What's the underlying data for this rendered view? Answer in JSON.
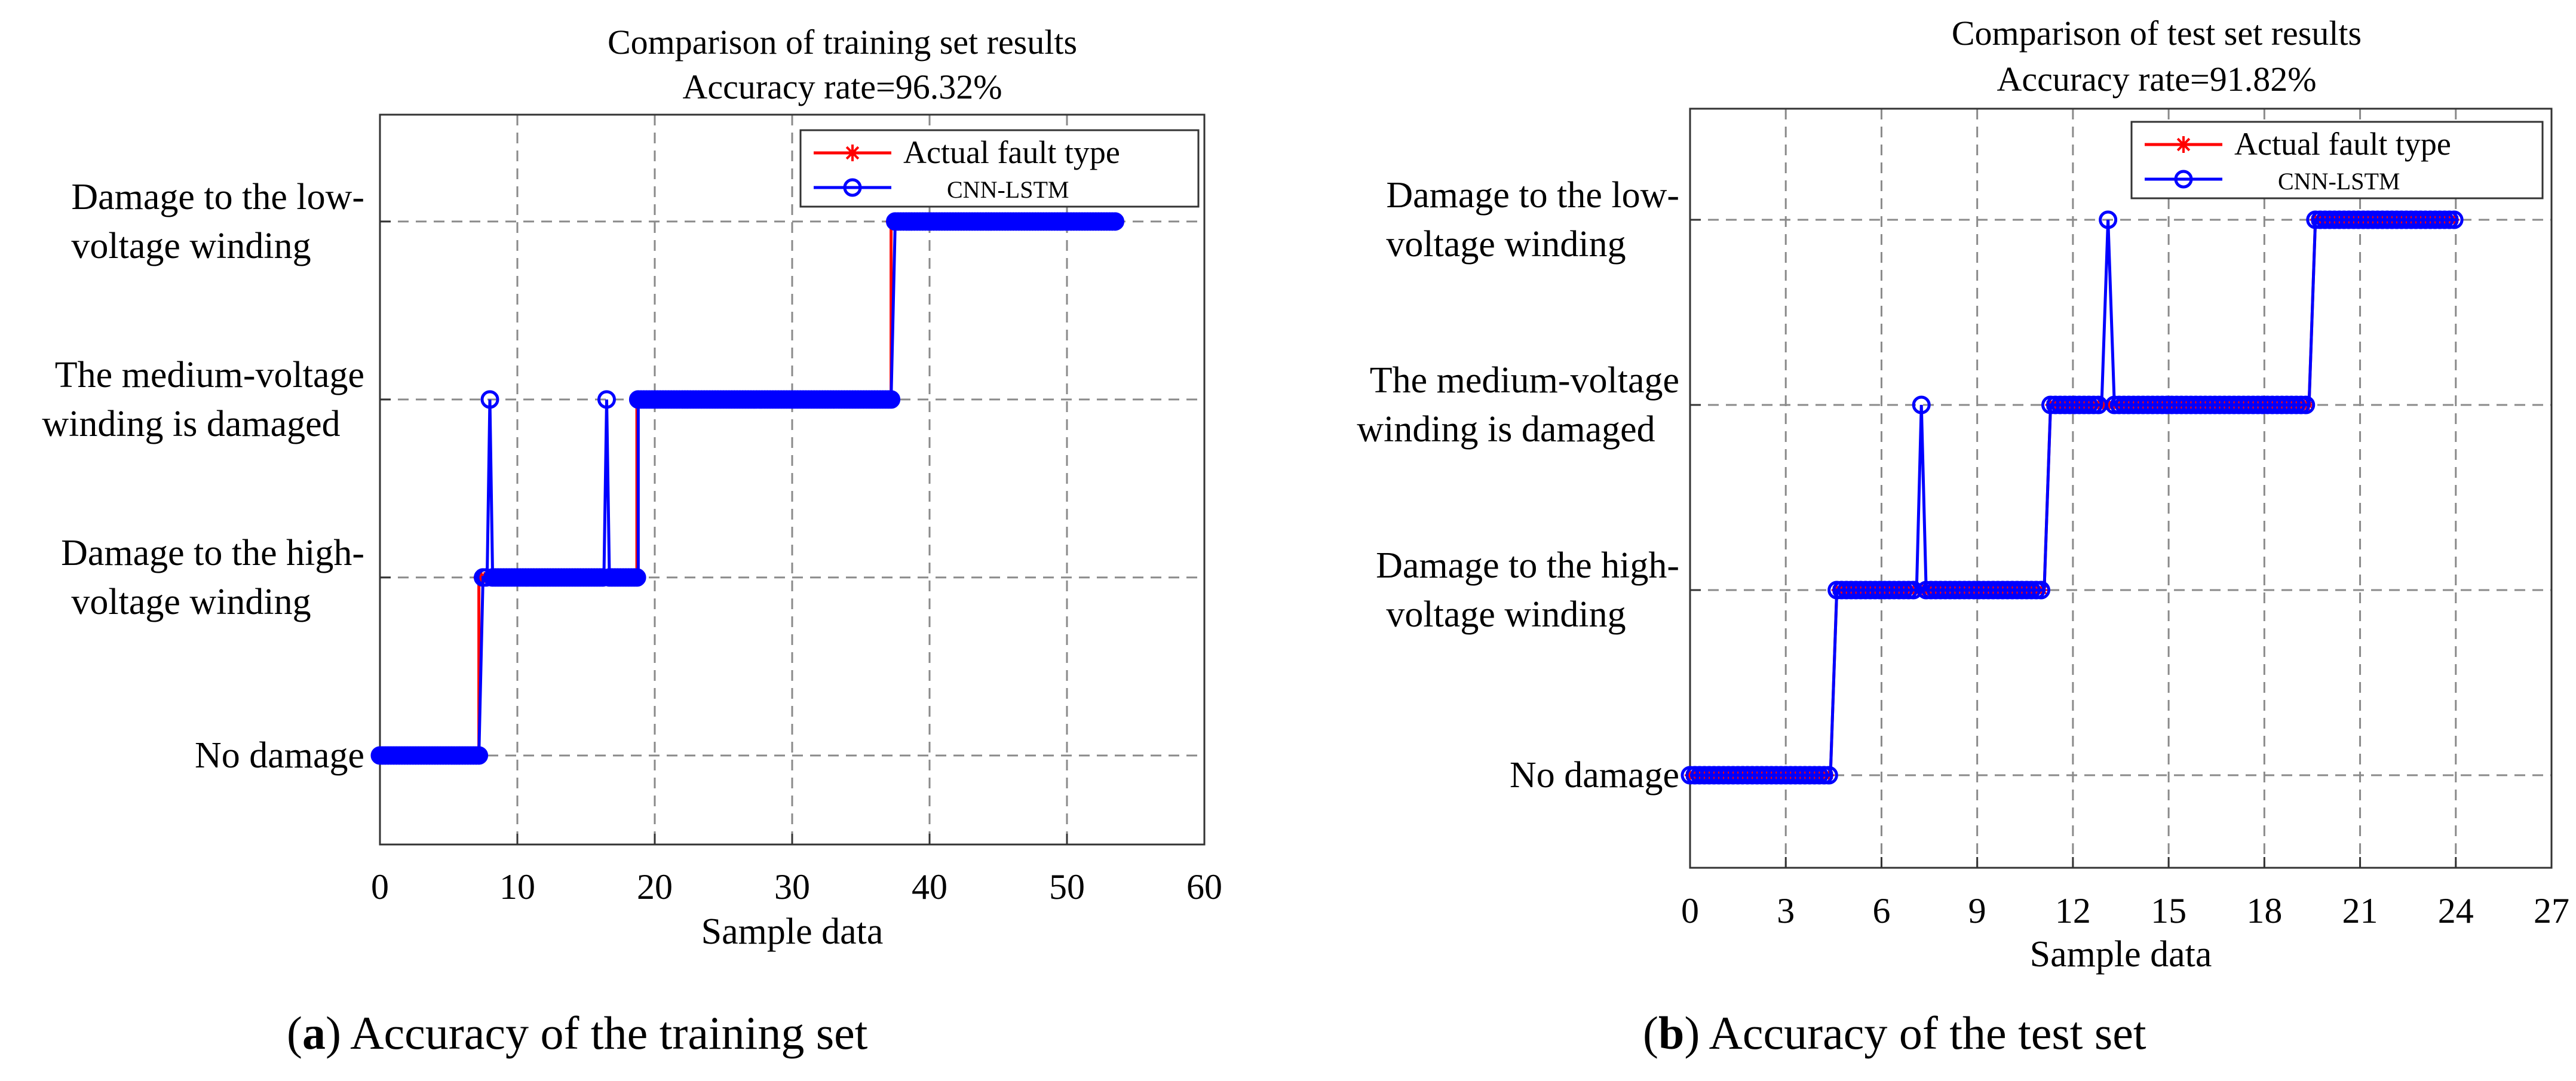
{
  "chart_data": [
    {
      "type": "line",
      "title": [
        "Comparison of training set results",
        "Accuracy rate=96.32%"
      ],
      "xlabel": "Sample data",
      "ylabel": "",
      "xlim": [
        0,
        60
      ],
      "ylim": [
        0.5,
        4.6
      ],
      "xticks": [
        0,
        10,
        20,
        30,
        40,
        50,
        60
      ],
      "ytick_values": [
        1,
        2,
        3,
        4
      ],
      "ytick_labels": [
        [
          "No damage"
        ],
        [
          "Damage to the high-",
          "voltage winding"
        ],
        [
          "The medium-voltage",
          "winding is damaged"
        ],
        [
          "Damage to the low-",
          "voltage winding"
        ]
      ],
      "grid": true,
      "legend_position": "top-right",
      "series": [
        {
          "name": "Actual fault type",
          "color": "#ff0000",
          "marker": "*",
          "segments": [
            {
              "from": 0,
              "to": 7.2,
              "value": 1
            },
            {
              "from": 7.2,
              "to": 18.7,
              "value": 2
            },
            {
              "from": 18.7,
              "to": 37.2,
              "value": 3
            },
            {
              "from": 37.2,
              "to": 53.5,
              "value": 4
            }
          ],
          "step": 0.2
        },
        {
          "name": "CNN-LSTM",
          "color": "#0000ff",
          "marker": "o",
          "segments": [
            {
              "from": 0,
              "to": 7.2,
              "value": 1
            },
            {
              "from": 7.5,
              "to": 7.8,
              "value": 2
            },
            {
              "from": 8.2,
              "to": 16.3,
              "value": 2
            },
            {
              "from": 16.7,
              "to": 18.8,
              "value": 2
            },
            {
              "from": 18.8,
              "to": 37.2,
              "value": 3
            },
            {
              "from": 37.5,
              "to": 53.5,
              "value": 4
            }
          ],
          "outliers": [
            {
              "x": 8.0,
              "value": 3
            },
            {
              "x": 16.5,
              "value": 3
            }
          ],
          "step": 0.2
        }
      ]
    },
    {
      "type": "line",
      "title": [
        "Comparison of test set results",
        "Accuracy rate=91.82%"
      ],
      "xlabel": "Sample data",
      "ylabel": "",
      "xlim": [
        0,
        27
      ],
      "ylim": [
        0.5,
        4.6
      ],
      "xticks": [
        0,
        3,
        6,
        9,
        12,
        15,
        18,
        21,
        24,
        27
      ],
      "ytick_values": [
        1,
        2,
        3,
        4
      ],
      "ytick_labels": [
        [
          "No damage"
        ],
        [
          "Damage to the high-",
          "voltage winding"
        ],
        [
          "The medium-voltage",
          "winding is damaged"
        ],
        [
          "Damage to the low-",
          "voltage winding"
        ]
      ],
      "grid": true,
      "legend_position": "top-right",
      "series": [
        {
          "name": "Actual fault type",
          "color": "#ff0000",
          "marker": "*",
          "segments": [
            {
              "from": 0,
              "to": 4.4,
              "value": 1
            },
            {
              "from": 4.6,
              "to": 11.1,
              "value": 2
            },
            {
              "from": 11.3,
              "to": 19.4,
              "value": 3
            },
            {
              "from": 19.6,
              "to": 24.0,
              "value": 4
            }
          ],
          "step": 0.15
        },
        {
          "name": "CNN-LSTM",
          "color": "#0000ff",
          "marker": "o",
          "segments": [
            {
              "from": 0,
              "to": 4.4,
              "value": 1
            },
            {
              "from": 4.6,
              "to": 7.1,
              "value": 2
            },
            {
              "from": 7.4,
              "to": 11.1,
              "value": 2
            },
            {
              "from": 11.3,
              "to": 12.9,
              "value": 3
            },
            {
              "from": 13.3,
              "to": 19.4,
              "value": 3
            },
            {
              "from": 19.6,
              "to": 24.0,
              "value": 4
            }
          ],
          "outliers": [
            {
              "x": 7.25,
              "value": 3
            },
            {
              "x": 13.1,
              "value": 4
            }
          ],
          "step": 0.15
        }
      ]
    }
  ],
  "captions": [
    {
      "label": "a",
      "text": "Accuracy of the training set"
    },
    {
      "label": "b",
      "text": "Accuracy of the test set"
    }
  ]
}
